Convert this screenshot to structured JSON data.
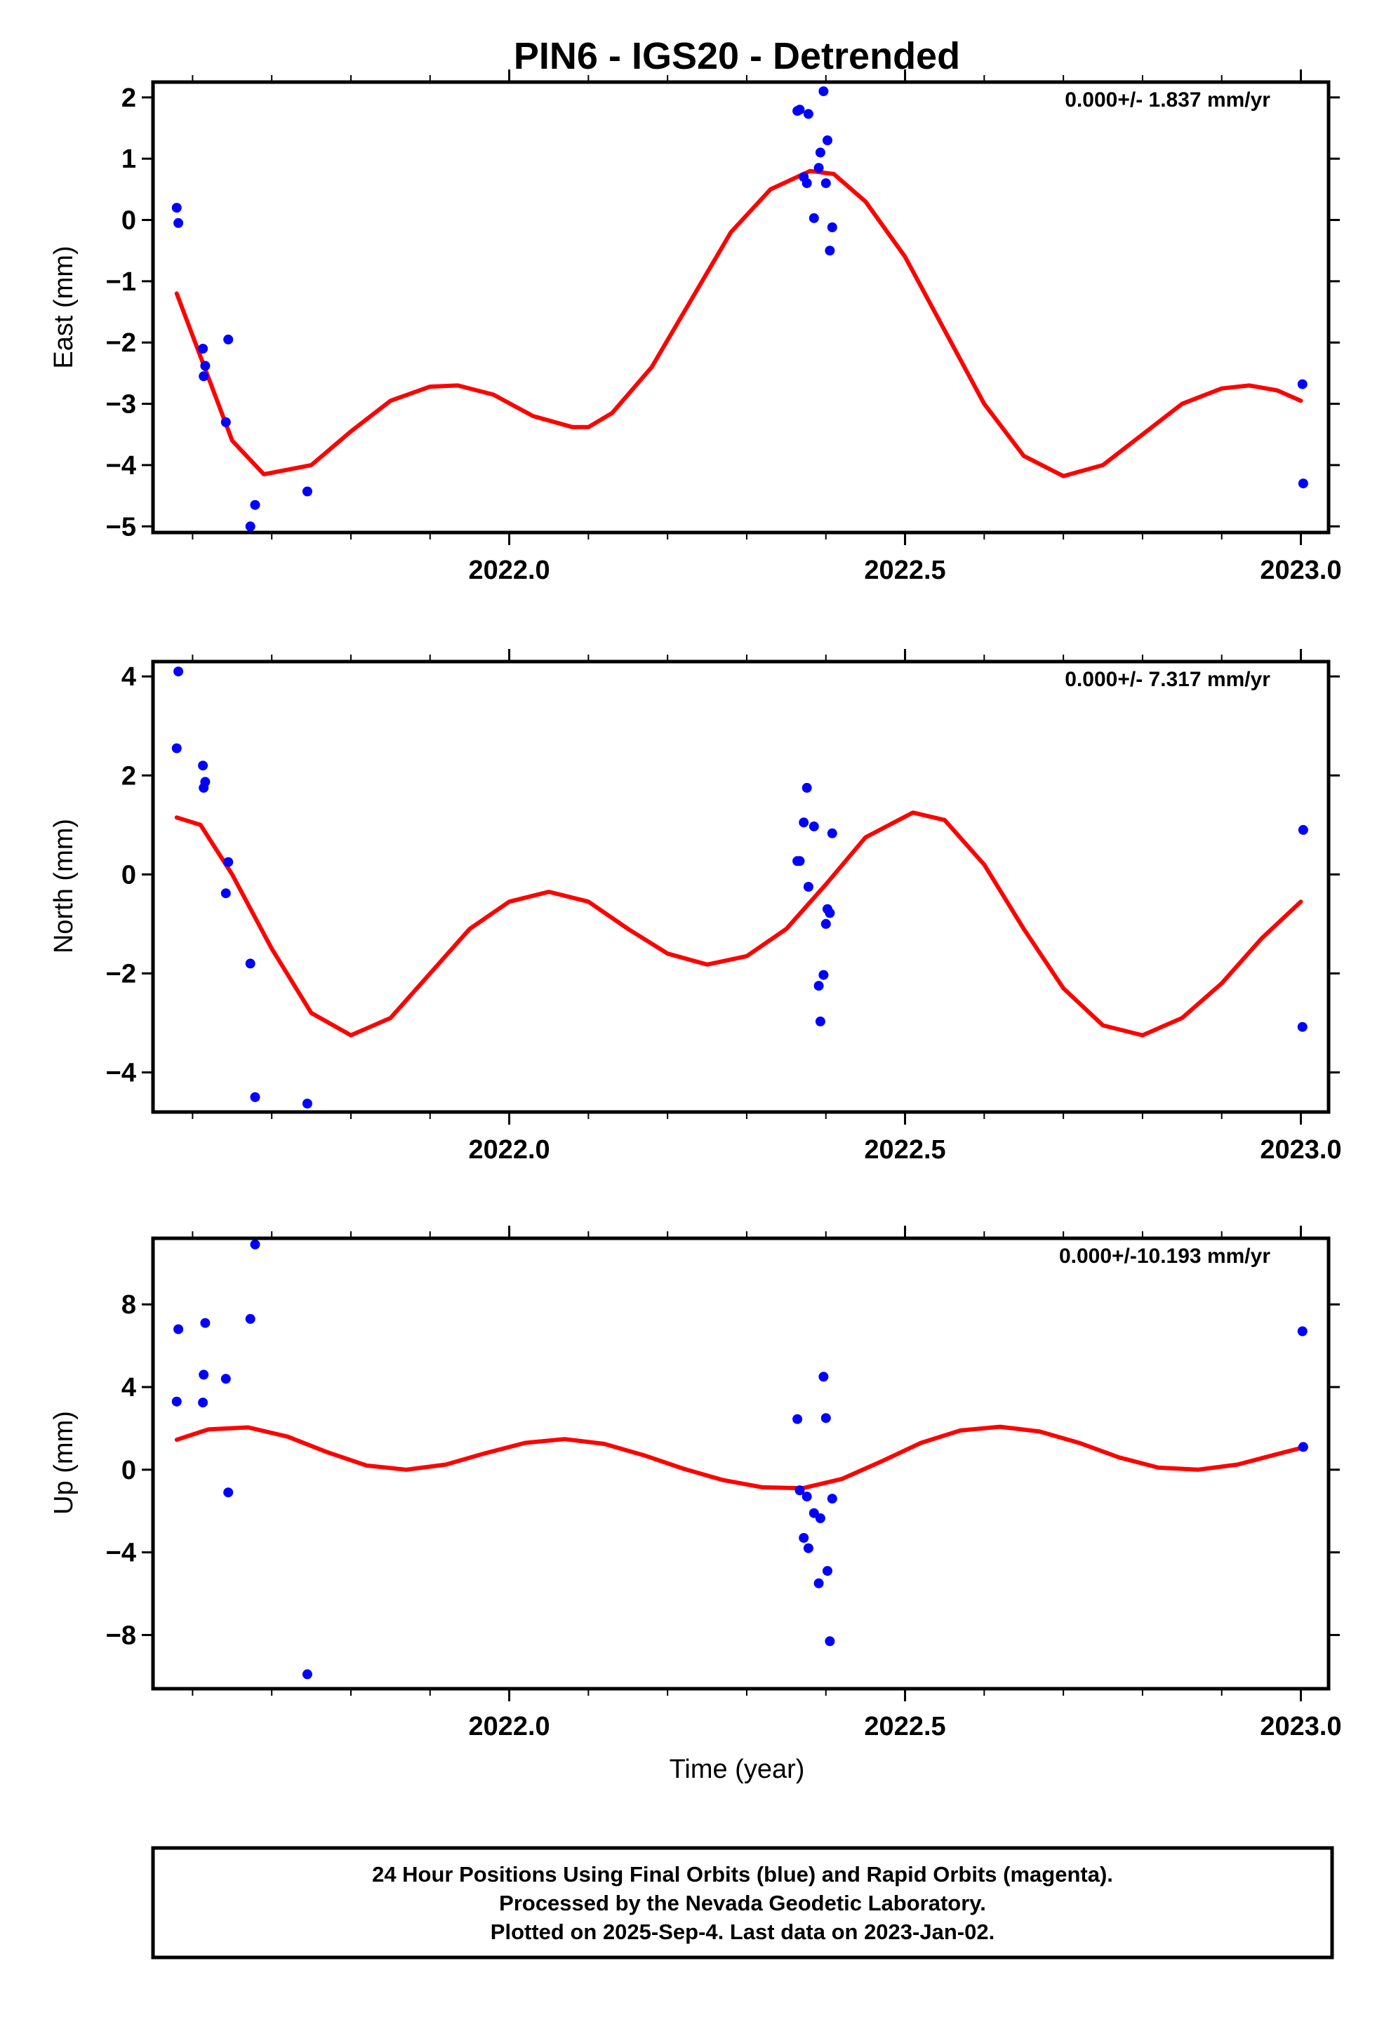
{
  "title": "PIN6 - IGS20 - Detrended",
  "xlabel": "Time (year)",
  "footer": [
    "24 Hour Positions Using Final Orbits (blue) and Rapid Orbits (magenta).",
    "Processed by the Nevada Geodetic Laboratory.",
    "Plotted on 2025-Sep-4. Last data on 2023-Jan-02."
  ],
  "colors": {
    "points": "#0000ff",
    "fit": "#ff0000",
    "axes": "#000000"
  },
  "chart_data": [
    {
      "type": "scatter",
      "ylabel": "East (mm)",
      "rate_label": "0.000+/- 1.837 mm/yr",
      "xlim": [
        2021.55,
        2023.035
      ],
      "ylim": [
        -5.1,
        2.25
      ],
      "yticks": [
        2,
        1,
        0,
        -1,
        -2,
        -3,
        -4,
        -5
      ],
      "ytick_labels": [
        "2",
        "1",
        "0",
        "−1",
        "−2",
        "−3",
        "−4",
        "−5"
      ],
      "xticks": [
        2022.0,
        2022.5,
        2023.0
      ],
      "xtick_labels": [
        "2022.0",
        "2022.5",
        "2023.0"
      ],
      "points": {
        "x": [
          2021.58,
          2021.582,
          2021.613,
          2021.614,
          2021.616,
          2021.642,
          2021.645,
          2021.673,
          2021.679,
          2021.745,
          2022.364,
          2022.367,
          2022.372,
          2022.376,
          2022.378,
          2022.385,
          2022.391,
          2022.393,
          2022.397,
          2022.4,
          2022.402,
          2022.405,
          2022.408,
          2023.002,
          2023.003
        ],
        "y": [
          0.2,
          -0.05,
          -2.1,
          -2.55,
          -2.38,
          -3.3,
          -1.95,
          -5.0,
          -4.65,
          -4.43,
          1.78,
          1.8,
          0.7,
          0.6,
          1.73,
          0.03,
          0.85,
          1.1,
          2.1,
          0.6,
          1.3,
          -0.5,
          -0.12,
          -2.68,
          -4.3
        ]
      },
      "fit": {
        "x": [
          2021.58,
          2021.65,
          2021.69,
          2021.75,
          2021.8,
          2021.85,
          2021.9,
          2021.935,
          2021.98,
          2022.03,
          2022.08,
          2022.1,
          2022.13,
          2022.18,
          2022.23,
          2022.28,
          2022.33,
          2022.38,
          2022.41,
          2022.45,
          2022.5,
          2022.55,
          2022.6,
          2022.65,
          2022.7,
          2022.75,
          2022.8,
          2022.85,
          2022.9,
          2022.935,
          2022.97,
          2023.0
        ],
        "y": [
          -1.2,
          -3.6,
          -4.15,
          -4.0,
          -3.45,
          -2.95,
          -2.72,
          -2.7,
          -2.85,
          -3.2,
          -3.38,
          -3.38,
          -3.15,
          -2.4,
          -1.3,
          -0.2,
          0.5,
          0.8,
          0.75,
          0.3,
          -0.6,
          -1.8,
          -3.0,
          -3.85,
          -4.18,
          -4.0,
          -3.5,
          -3.0,
          -2.75,
          -2.7,
          -2.78,
          -2.95
        ]
      }
    },
    {
      "type": "scatter",
      "ylabel": "North (mm)",
      "rate_label": "0.000+/- 7.317 mm/yr",
      "xlim": [
        2021.55,
        2023.035
      ],
      "ylim": [
        -4.8,
        4.3
      ],
      "yticks": [
        4,
        2,
        0,
        -2,
        -4
      ],
      "ytick_labels": [
        "4",
        "2",
        "0",
        "−2",
        "−4"
      ],
      "xticks": [
        2022.0,
        2022.5,
        2023.0
      ],
      "xtick_labels": [
        "2022.0",
        "2022.5",
        "2023.0"
      ],
      "points": {
        "x": [
          2021.58,
          2021.582,
          2021.613,
          2021.614,
          2021.616,
          2021.642,
          2021.645,
          2021.673,
          2021.679,
          2021.745,
          2022.364,
          2022.367,
          2022.372,
          2022.376,
          2022.378,
          2022.385,
          2022.391,
          2022.393,
          2022.397,
          2022.4,
          2022.402,
          2022.405,
          2022.408,
          2023.002,
          2023.003
        ],
        "y": [
          2.55,
          4.1,
          2.2,
          1.75,
          1.87,
          -0.38,
          0.25,
          -1.8,
          -4.5,
          -4.63,
          0.27,
          0.27,
          1.05,
          1.75,
          -0.25,
          0.97,
          -2.25,
          -2.97,
          -2.03,
          -1.0,
          -0.7,
          -0.78,
          0.83,
          -3.08,
          0.9
        ]
      },
      "fit": {
        "x": [
          2021.58,
          2021.61,
          2021.65,
          2021.7,
          2021.75,
          2021.8,
          2021.85,
          2021.9,
          2021.95,
          2022.0,
          2022.05,
          2022.1,
          2022.15,
          2022.2,
          2022.25,
          2022.3,
          2022.35,
          2022.4,
          2022.45,
          2022.51,
          2022.55,
          2022.6,
          2022.65,
          2022.7,
          2022.75,
          2022.8,
          2022.85,
          2022.9,
          2022.95,
          2023.0
        ],
        "y": [
          1.15,
          1.0,
          0.0,
          -1.5,
          -2.8,
          -3.25,
          -2.9,
          -2.0,
          -1.1,
          -0.55,
          -0.35,
          -0.55,
          -1.1,
          -1.6,
          -1.82,
          -1.65,
          -1.1,
          -0.2,
          0.75,
          1.25,
          1.1,
          0.2,
          -1.1,
          -2.3,
          -3.05,
          -3.25,
          -2.9,
          -2.2,
          -1.3,
          -0.55
        ]
      }
    },
    {
      "type": "scatter",
      "ylabel": "Up (mm)",
      "rate_label": "0.000+/-10.193 mm/yr",
      "xlim": [
        2021.55,
        2023.035
      ],
      "ylim": [
        -10.6,
        11.2
      ],
      "yticks": [
        8,
        4,
        0,
        -4,
        -8
      ],
      "ytick_labels": [
        "8",
        "4",
        "0",
        "−4",
        "−8"
      ],
      "xticks": [
        2022.0,
        2022.5,
        2023.0
      ],
      "xtick_labels": [
        "2022.0",
        "2022.5",
        "2023.0"
      ],
      "points": {
        "x": [
          2021.58,
          2021.582,
          2021.613,
          2021.614,
          2021.616,
          2021.642,
          2021.645,
          2021.673,
          2021.679,
          2021.745,
          2022.364,
          2022.367,
          2022.372,
          2022.376,
          2022.378,
          2022.385,
          2022.391,
          2022.393,
          2022.397,
          2022.4,
          2022.402,
          2022.405,
          2022.408,
          2023.002,
          2023.003
        ],
        "y": [
          3.3,
          6.8,
          3.25,
          4.6,
          7.1,
          4.4,
          -1.1,
          7.3,
          10.9,
          -9.9,
          2.45,
          -1.0,
          -3.3,
          -1.3,
          -3.8,
          -2.1,
          -5.5,
          -2.35,
          4.5,
          2.5,
          -4.9,
          -8.3,
          -1.4,
          6.7,
          1.1
        ]
      },
      "fit": {
        "x": [
          2021.58,
          2021.62,
          2021.67,
          2021.72,
          2021.77,
          2021.82,
          2021.87,
          2021.92,
          2021.97,
          2022.02,
          2022.07,
          2022.12,
          2022.17,
          2022.22,
          2022.27,
          2022.32,
          2022.37,
          2022.42,
          2022.47,
          2022.52,
          2022.57,
          2022.62,
          2022.67,
          2022.72,
          2022.77,
          2022.82,
          2022.87,
          2022.92,
          2022.97,
          2023.0
        ],
        "y": [
          1.45,
          1.95,
          2.05,
          1.6,
          0.85,
          0.2,
          0.0,
          0.25,
          0.8,
          1.3,
          1.48,
          1.25,
          0.7,
          0.05,
          -0.5,
          -0.85,
          -0.9,
          -0.45,
          0.4,
          1.3,
          1.9,
          2.08,
          1.85,
          1.3,
          0.6,
          0.1,
          0.0,
          0.25,
          0.75,
          1.05
        ]
      }
    }
  ]
}
